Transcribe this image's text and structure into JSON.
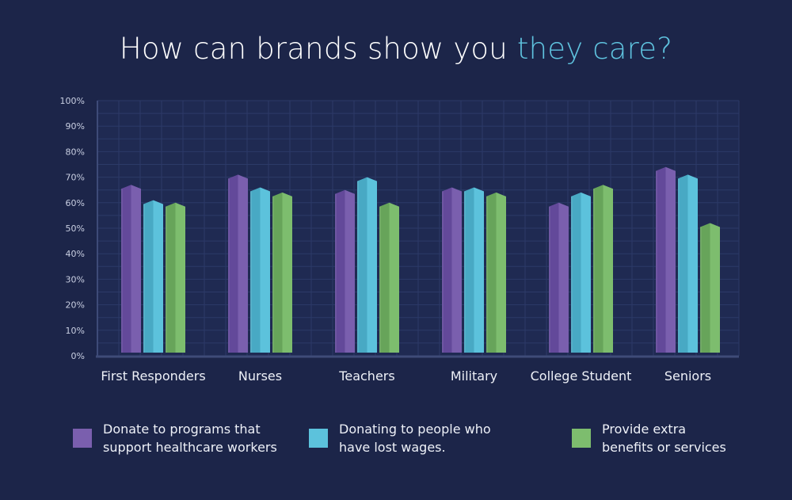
{
  "title": {
    "main": "How can brands show you",
    "accent": "they care?"
  },
  "colors": {
    "background": "#1c2549",
    "plot_bg": "#1f2a52",
    "grid": "#2c3a68",
    "axis": "#3e4b78",
    "accent": "#5fc3df",
    "series": [
      "#7a5fae",
      "#5cc2dc",
      "#7dbd6e"
    ],
    "series_side": [
      "#63499a",
      "#48a9c4",
      "#67a45a"
    ]
  },
  "chart_data": {
    "type": "bar",
    "categories": [
      "First Responders",
      "Nurses",
      "Teachers",
      "Military",
      "College Student",
      "Seniors"
    ],
    "series": [
      {
        "name": "Donate to programs that support healthcare workers",
        "values": [
          67,
          71,
          65,
          66,
          60,
          74
        ]
      },
      {
        "name": "Donating to people who have lost wages.",
        "values": [
          61,
          66,
          70,
          66,
          64,
          71
        ]
      },
      {
        "name": "Provide extra benefits or services",
        "values": [
          60,
          64,
          60,
          64,
          67,
          52
        ]
      }
    ],
    "ylim": [
      0,
      100
    ],
    "yticks": [
      "0%",
      "10%",
      "20%",
      "30%",
      "40%",
      "50%",
      "60%",
      "70%",
      "80%",
      "90%",
      "100%"
    ],
    "grid": true,
    "legend": "bottom"
  },
  "legend": [
    {
      "label": "Donate to programs that\nsupport healthcare workers"
    },
    {
      "label": "Donating to people who\nhave lost wages."
    },
    {
      "label": "Provide extra\nbenefits or services"
    }
  ]
}
